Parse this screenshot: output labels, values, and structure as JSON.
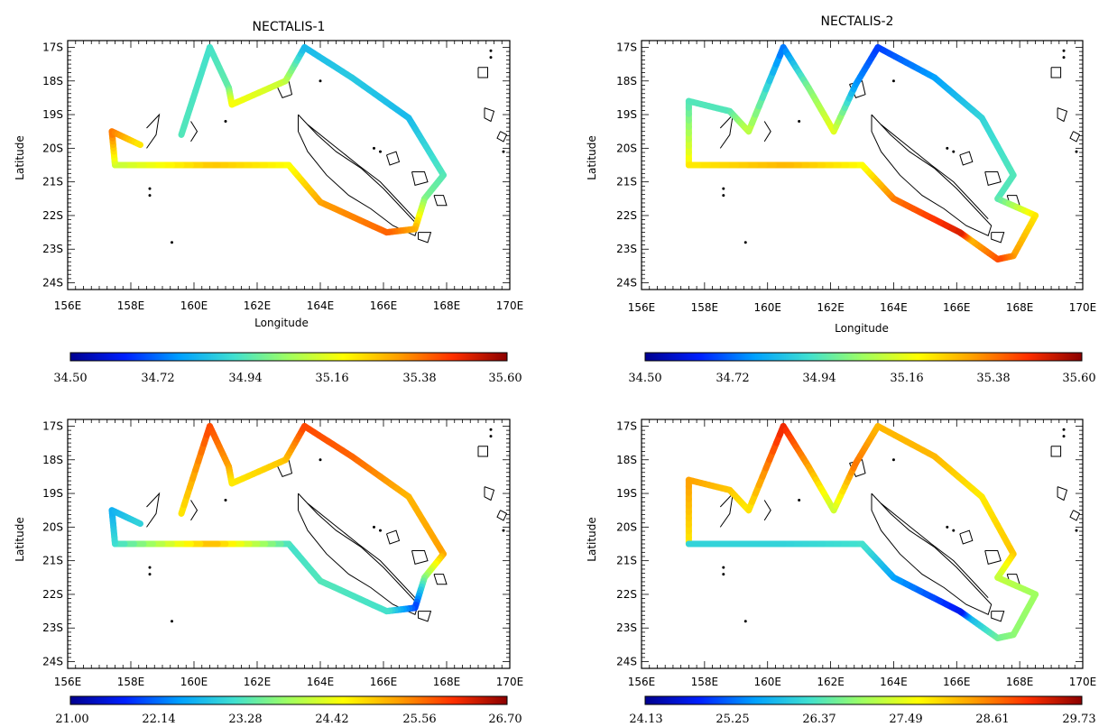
{
  "panels": [
    {
      "title": "NECTALIS-1",
      "xlabel": "Longitude",
      "ylabel": "Latitude",
      "colorbar_ticks": [
        "34.50",
        "34.72",
        "34.94",
        "35.16",
        "35.38",
        "35.60"
      ]
    },
    {
      "title": "NECTALIS-2",
      "xlabel": "Longitude",
      "ylabel": "Latitude",
      "colorbar_ticks": [
        "34.50",
        "34.72",
        "34.94",
        "35.16",
        "35.38",
        "35.60"
      ]
    },
    {
      "title": "",
      "xlabel": "",
      "ylabel": "Latitude",
      "colorbar_ticks": [
        "21.00",
        "22.14",
        "23.28",
        "24.42",
        "25.56",
        "26.70"
      ]
    },
    {
      "title": "",
      "xlabel": "",
      "ylabel": "Latitude",
      "colorbar_ticks": [
        "24.13",
        "25.25",
        "26.37",
        "27.49",
        "28.61",
        "29.73"
      ]
    }
  ],
  "axes": {
    "x_ticks": [
      "156E",
      "158E",
      "160E",
      "162E",
      "164E",
      "166E",
      "168E",
      "170E"
    ],
    "x_values": [
      156,
      158,
      160,
      162,
      164,
      166,
      168,
      170
    ],
    "y_ticks": [
      "17S",
      "18S",
      "19S",
      "20S",
      "21S",
      "22S",
      "23S",
      "24S"
    ],
    "y_values": [
      -17,
      -18,
      -19,
      -20,
      -21,
      -22,
      -23,
      -24
    ],
    "xlim": [
      156,
      170
    ],
    "ylim": [
      -24.2,
      -16.8
    ]
  },
  "colormap": [
    "#00008f",
    "#0020ff",
    "#00a0ff",
    "#40e0d0",
    "#a0ff60",
    "#ffff00",
    "#ffa000",
    "#ff3000",
    "#8b0000"
  ],
  "tracks": {
    "nectalis1": [
      {
        "lon": 159.6,
        "lat": -19.6,
        "v": 0.4
      },
      {
        "lon": 160.5,
        "lat": -17.0,
        "v": 0.38
      },
      {
        "lon": 161.1,
        "lat": -18.2,
        "v": 0.42
      },
      {
        "lon": 161.2,
        "lat": -18.7,
        "v": 0.62
      },
      {
        "lon": 162.9,
        "lat": -18.0,
        "v": 0.55
      },
      {
        "lon": 163.5,
        "lat": -17.0,
        "v": 0.3
      },
      {
        "lon": 165.0,
        "lat": -17.9,
        "v": 0.33
      },
      {
        "lon": 166.8,
        "lat": -19.1,
        "v": 0.3
      },
      {
        "lon": 167.9,
        "lat": -20.8,
        "v": 0.4
      },
      {
        "lon": 167.3,
        "lat": -21.5,
        "v": 0.45
      },
      {
        "lon": 167.0,
        "lat": -22.4,
        "v": 0.72
      },
      {
        "lon": 166.1,
        "lat": -22.5,
        "v": 0.82
      },
      {
        "lon": 164.0,
        "lat": -21.6,
        "v": 0.75
      },
      {
        "lon": 163.0,
        "lat": -20.5,
        "v": 0.62
      },
      {
        "lon": 160.5,
        "lat": -20.5,
        "v": 0.7
      },
      {
        "lon": 157.5,
        "lat": -20.5,
        "v": 0.55
      },
      {
        "lon": 157.4,
        "lat": -19.5,
        "v": 0.8
      },
      {
        "lon": 158.3,
        "lat": -19.9,
        "v": 0.65
      }
    ],
    "nectalis2": [
      {
        "lon": 157.5,
        "lat": -20.5,
        "v": 0.65
      },
      {
        "lon": 157.5,
        "lat": -18.6,
        "v": 0.4
      },
      {
        "lon": 158.8,
        "lat": -18.9,
        "v": 0.4
      },
      {
        "lon": 159.4,
        "lat": -19.5,
        "v": 0.55
      },
      {
        "lon": 160.5,
        "lat": -17.0,
        "v": 0.2
      },
      {
        "lon": 161.3,
        "lat": -18.2,
        "v": 0.45
      },
      {
        "lon": 162.1,
        "lat": -19.5,
        "v": 0.6
      },
      {
        "lon": 162.8,
        "lat": -18.1,
        "v": 0.25
      },
      {
        "lon": 163.5,
        "lat": -17.0,
        "v": 0.15
      },
      {
        "lon": 165.3,
        "lat": -17.9,
        "v": 0.25
      },
      {
        "lon": 166.8,
        "lat": -19.1,
        "v": 0.35
      },
      {
        "lon": 167.8,
        "lat": -20.8,
        "v": 0.4
      },
      {
        "lon": 167.3,
        "lat": -21.5,
        "v": 0.4
      },
      {
        "lon": 168.5,
        "lat": -22.0,
        "v": 0.65
      },
      {
        "lon": 167.8,
        "lat": -23.2,
        "v": 0.75
      },
      {
        "lon": 167.3,
        "lat": -23.3,
        "v": 0.85
      },
      {
        "lon": 166.4,
        "lat": -22.7,
        "v": 0.72
      },
      {
        "lon": 166.1,
        "lat": -22.5,
        "v": 0.92
      },
      {
        "lon": 164.0,
        "lat": -21.5,
        "v": 0.8
      },
      {
        "lon": 163.0,
        "lat": -20.5,
        "v": 0.62
      },
      {
        "lon": 160.5,
        "lat": -20.5,
        "v": 0.72
      },
      {
        "lon": 157.5,
        "lat": -20.5,
        "v": 0.65
      }
    ],
    "nectalis1_temp": [
      {
        "lon": 159.6,
        "lat": -19.6,
        "v": 0.65
      },
      {
        "lon": 160.5,
        "lat": -17.0,
        "v": 0.85
      },
      {
        "lon": 161.1,
        "lat": -18.2,
        "v": 0.75
      },
      {
        "lon": 161.2,
        "lat": -18.7,
        "v": 0.65
      },
      {
        "lon": 162.9,
        "lat": -18.0,
        "v": 0.7
      },
      {
        "lon": 163.5,
        "lat": -17.0,
        "v": 0.85
      },
      {
        "lon": 165.0,
        "lat": -17.9,
        "v": 0.82
      },
      {
        "lon": 166.8,
        "lat": -19.1,
        "v": 0.72
      },
      {
        "lon": 167.9,
        "lat": -20.8,
        "v": 0.75
      },
      {
        "lon": 167.3,
        "lat": -21.5,
        "v": 0.48
      },
      {
        "lon": 167.0,
        "lat": -22.4,
        "v": 0.15
      },
      {
        "lon": 166.1,
        "lat": -22.5,
        "v": 0.38
      },
      {
        "lon": 164.0,
        "lat": -21.6,
        "v": 0.4
      },
      {
        "lon": 163.0,
        "lat": -20.5,
        "v": 0.38
      },
      {
        "lon": 160.5,
        "lat": -20.5,
        "v": 0.72
      },
      {
        "lon": 157.5,
        "lat": -20.5,
        "v": 0.38
      },
      {
        "lon": 157.4,
        "lat": -19.5,
        "v": 0.28
      },
      {
        "lon": 158.3,
        "lat": -19.9,
        "v": 0.35
      }
    ],
    "nectalis2_temp": [
      {
        "lon": 157.5,
        "lat": -20.5,
        "v": 0.65
      },
      {
        "lon": 157.5,
        "lat": -18.6,
        "v": 0.75
      },
      {
        "lon": 158.8,
        "lat": -18.9,
        "v": 0.7
      },
      {
        "lon": 159.4,
        "lat": -19.5,
        "v": 0.65
      },
      {
        "lon": 160.5,
        "lat": -17.0,
        "v": 0.9
      },
      {
        "lon": 161.3,
        "lat": -18.2,
        "v": 0.75
      },
      {
        "lon": 162.1,
        "lat": -19.5,
        "v": 0.55
      },
      {
        "lon": 162.8,
        "lat": -18.1,
        "v": 0.8
      },
      {
        "lon": 163.5,
        "lat": -17.0,
        "v": 0.72
      },
      {
        "lon": 165.3,
        "lat": -17.9,
        "v": 0.72
      },
      {
        "lon": 166.8,
        "lat": -19.1,
        "v": 0.65
      },
      {
        "lon": 167.8,
        "lat": -20.8,
        "v": 0.7
      },
      {
        "lon": 167.3,
        "lat": -21.5,
        "v": 0.55
      },
      {
        "lon": 168.5,
        "lat": -22.0,
        "v": 0.5
      },
      {
        "lon": 167.8,
        "lat": -23.2,
        "v": 0.48
      },
      {
        "lon": 167.3,
        "lat": -23.3,
        "v": 0.45
      },
      {
        "lon": 166.4,
        "lat": -22.7,
        "v": 0.3
      },
      {
        "lon": 166.1,
        "lat": -22.5,
        "v": 0.1
      },
      {
        "lon": 164.0,
        "lat": -21.5,
        "v": 0.25
      },
      {
        "lon": 163.0,
        "lat": -20.5,
        "v": 0.38
      },
      {
        "lon": 160.5,
        "lat": -20.5,
        "v": 0.35
      },
      {
        "lon": 157.5,
        "lat": -20.5,
        "v": 0.35
      }
    ]
  },
  "coastlines": [
    [
      [
        163.3,
        -19.0
      ],
      [
        163.9,
        -19.6
      ],
      [
        164.5,
        -20.1
      ],
      [
        165.3,
        -20.6
      ],
      [
        166.0,
        -21.2
      ],
      [
        166.6,
        -21.8
      ],
      [
        167.1,
        -22.3
      ],
      [
        167.0,
        -22.6
      ],
      [
        166.3,
        -22.3
      ],
      [
        165.6,
        -21.8
      ],
      [
        164.9,
        -21.4
      ],
      [
        164.2,
        -20.8
      ],
      [
        163.6,
        -20.1
      ],
      [
        163.3,
        -19.5
      ],
      [
        163.3,
        -19.0
      ]
    ],
    [
      [
        163.6,
        -19.3
      ],
      [
        164.4,
        -19.9
      ],
      [
        165.2,
        -20.5
      ],
      [
        165.9,
        -21.0
      ],
      [
        166.5,
        -21.6
      ],
      [
        167.0,
        -22.1
      ]
    ],
    [
      [
        167.1,
        -22.5
      ],
      [
        167.5,
        -22.5
      ],
      [
        167.4,
        -22.8
      ],
      [
        167.1,
        -22.7
      ],
      [
        167.1,
        -22.5
      ]
    ],
    [
      [
        162.6,
        -18.1
      ],
      [
        163.0,
        -18.0
      ],
      [
        163.1,
        -18.4
      ],
      [
        162.8,
        -18.5
      ],
      [
        162.6,
        -18.1
      ]
    ],
    [
      [
        166.9,
        -20.7
      ],
      [
        167.3,
        -20.7
      ],
      [
        167.4,
        -21.0
      ],
      [
        167.0,
        -21.1
      ],
      [
        166.9,
        -20.7
      ]
    ],
    [
      [
        167.6,
        -21.4
      ],
      [
        167.9,
        -21.4
      ],
      [
        168.0,
        -21.7
      ],
      [
        167.7,
        -21.7
      ],
      [
        167.6,
        -21.4
      ]
    ],
    [
      [
        166.1,
        -20.2
      ],
      [
        166.4,
        -20.1
      ],
      [
        166.5,
        -20.4
      ],
      [
        166.2,
        -20.5
      ],
      [
        166.1,
        -20.2
      ]
    ],
    [
      [
        158.5,
        -19.4
      ],
      [
        158.9,
        -19.0
      ],
      [
        158.8,
        -19.6
      ],
      [
        158.5,
        -20.0
      ]
    ],
    [
      [
        159.9,
        -19.2
      ],
      [
        160.1,
        -19.5
      ],
      [
        159.9,
        -19.8
      ]
    ],
    [
      [
        169.0,
        -17.6
      ],
      [
        169.3,
        -17.6
      ],
      [
        169.3,
        -17.9
      ],
      [
        169.0,
        -17.9
      ],
      [
        169.0,
        -17.6
      ]
    ],
    [
      [
        169.7,
        -19.5
      ],
      [
        169.9,
        -19.6
      ],
      [
        169.8,
        -19.8
      ],
      [
        169.6,
        -19.7
      ],
      [
        169.7,
        -19.5
      ]
    ],
    [
      [
        169.2,
        -18.8
      ],
      [
        169.5,
        -18.9
      ],
      [
        169.4,
        -19.2
      ],
      [
        169.2,
        -19.1
      ],
      [
        169.2,
        -18.8
      ]
    ]
  ],
  "specks": [
    [
      164.0,
      -18.0
    ],
    [
      165.7,
      -20.0
    ],
    [
      165.9,
      -20.1
    ],
    [
      158.6,
      -21.2
    ],
    [
      158.6,
      -21.4
    ],
    [
      159.3,
      -22.8
    ],
    [
      169.4,
      -17.1
    ],
    [
      169.4,
      -17.3
    ],
    [
      169.8,
      -20.1
    ],
    [
      161.0,
      -19.2
    ]
  ]
}
